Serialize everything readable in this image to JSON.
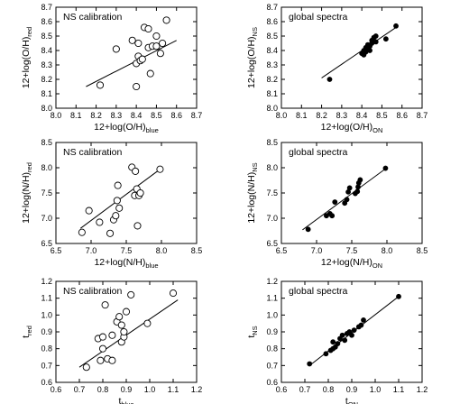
{
  "chart_data": [
    {
      "type": "scatter",
      "title": "NS calibration",
      "xlabel": {
        "main": "12+log(O/H)",
        "sub": "blue"
      },
      "ylabel": {
        "main": "12+log(O/H)",
        "sub": "red"
      },
      "xlim": [
        8.0,
        8.7
      ],
      "ylim": [
        8.0,
        8.7
      ],
      "xticks": [
        "8.0",
        "8.1",
        "8.2",
        "8.3",
        "8.4",
        "8.5",
        "8.6",
        "8.7"
      ],
      "yticks": [
        "8.0",
        "8.1",
        "8.2",
        "8.3",
        "8.4",
        "8.5",
        "8.6",
        "8.7"
      ],
      "marker": "open",
      "fit": [
        [
          8.15,
          8.15
        ],
        [
          8.6,
          8.47
        ]
      ],
      "points": [
        [
          8.22,
          8.16
        ],
        [
          8.3,
          8.41
        ],
        [
          8.38,
          8.47
        ],
        [
          8.4,
          8.15
        ],
        [
          8.4,
          8.31
        ],
        [
          8.41,
          8.36
        ],
        [
          8.41,
          8.45
        ],
        [
          8.42,
          8.33
        ],
        [
          8.43,
          8.34
        ],
        [
          8.44,
          8.56
        ],
        [
          8.46,
          8.55
        ],
        [
          8.46,
          8.42
        ],
        [
          8.47,
          8.24
        ],
        [
          8.48,
          8.43
        ],
        [
          8.5,
          8.5
        ],
        [
          8.5,
          8.43
        ],
        [
          8.52,
          8.38
        ],
        [
          8.53,
          8.45
        ],
        [
          8.55,
          8.61
        ]
      ]
    },
    {
      "type": "scatter",
      "title": "global spectra",
      "xlabel": {
        "main": "12+log(O/H)",
        "sub": "ON"
      },
      "ylabel": {
        "main": "12+log(O/H)",
        "sub": "NS"
      },
      "xlim": [
        8.0,
        8.7
      ],
      "ylim": [
        8.0,
        8.7
      ],
      "xticks": [
        "8.0",
        "8.1",
        "8.2",
        "8.3",
        "8.4",
        "8.5",
        "8.6",
        "8.7"
      ],
      "yticks": [
        "8.0",
        "8.1",
        "8.2",
        "8.3",
        "8.4",
        "8.5",
        "8.6",
        "8.7"
      ],
      "marker": "filled",
      "fit": [
        [
          8.2,
          8.21
        ],
        [
          8.57,
          8.56
        ]
      ],
      "points": [
        [
          8.24,
          8.2
        ],
        [
          8.4,
          8.38
        ],
        [
          8.41,
          8.4
        ],
        [
          8.41,
          8.37
        ],
        [
          8.42,
          8.42
        ],
        [
          8.42,
          8.39
        ],
        [
          8.43,
          8.41
        ],
        [
          8.43,
          8.44
        ],
        [
          8.44,
          8.4
        ],
        [
          8.44,
          8.43
        ],
        [
          8.45,
          8.45
        ],
        [
          8.45,
          8.47
        ],
        [
          8.46,
          8.49
        ],
        [
          8.47,
          8.46
        ],
        [
          8.47,
          8.5
        ],
        [
          8.52,
          8.48
        ],
        [
          8.57,
          8.57
        ]
      ]
    },
    {
      "type": "scatter",
      "title": "NS calibration",
      "xlabel": {
        "main": "12+log(N/H)",
        "sub": "blue"
      },
      "ylabel": {
        "main": "12+log(N/H)",
        "sub": "red"
      },
      "xlim": [
        6.5,
        8.5
      ],
      "ylim": [
        6.5,
        8.5
      ],
      "xticks": [
        "6.5",
        "7.0",
        "7.5",
        "8.0",
        "8.5"
      ],
      "yticks": [
        "6.5",
        "7.0",
        "7.5",
        "8.0",
        "8.5"
      ],
      "marker": "open",
      "fit": [
        [
          6.85,
          6.8
        ],
        [
          7.98,
          7.97
        ]
      ],
      "points": [
        [
          6.87,
          6.72
        ],
        [
          6.97,
          7.15
        ],
        [
          7.12,
          6.92
        ],
        [
          7.27,
          6.7
        ],
        [
          7.32,
          6.97
        ],
        [
          7.35,
          7.05
        ],
        [
          7.37,
          7.35
        ],
        [
          7.38,
          7.65
        ],
        [
          7.4,
          7.2
        ],
        [
          7.58,
          8.01
        ],
        [
          7.62,
          7.45
        ],
        [
          7.63,
          7.93
        ],
        [
          7.65,
          7.58
        ],
        [
          7.66,
          6.85
        ],
        [
          7.68,
          7.45
        ],
        [
          7.7,
          7.5
        ],
        [
          7.98,
          7.97
        ]
      ]
    },
    {
      "type": "scatter",
      "title": "global spectra",
      "xlabel": {
        "main": "12+log(N/H)",
        "sub": "ON"
      },
      "ylabel": {
        "main": "12+log(N/H)",
        "sub": "NS"
      },
      "xlim": [
        6.5,
        8.5
      ],
      "ylim": [
        6.5,
        8.5
      ],
      "xticks": [
        "6.5",
        "7.0",
        "7.5",
        "8.0",
        "8.5"
      ],
      "yticks": [
        "6.5",
        "7.0",
        "7.5",
        "8.0",
        "8.5"
      ],
      "marker": "filled",
      "fit": [
        [
          6.8,
          6.77
        ],
        [
          7.98,
          7.98
        ]
      ],
      "points": [
        [
          6.88,
          6.78
        ],
        [
          7.14,
          7.05
        ],
        [
          7.19,
          7.09
        ],
        [
          7.22,
          7.05
        ],
        [
          7.26,
          7.32
        ],
        [
          7.4,
          7.3
        ],
        [
          7.43,
          7.37
        ],
        [
          7.45,
          7.52
        ],
        [
          7.47,
          7.6
        ],
        [
          7.55,
          7.49
        ],
        [
          7.58,
          7.53
        ],
        [
          7.59,
          7.62
        ],
        [
          7.6,
          7.7
        ],
        [
          7.62,
          7.76
        ],
        [
          7.98,
          7.99
        ]
      ]
    },
    {
      "type": "scatter",
      "title": "NS calibration",
      "xlabel": {
        "main": "t",
        "sub": "blue"
      },
      "ylabel": {
        "main": "t",
        "sub": "red"
      },
      "xlim": [
        0.6,
        1.2
      ],
      "ylim": [
        0.6,
        1.2
      ],
      "xticks": [
        "0.6",
        "0.7",
        "0.8",
        "0.9",
        "1.0",
        "1.1",
        "1.2"
      ],
      "yticks": [
        "0.6",
        "0.7",
        "0.8",
        "0.9",
        "1.0",
        "1.1",
        "1.2"
      ],
      "marker": "open",
      "fit": [
        [
          0.7,
          0.69
        ],
        [
          1.12,
          1.09
        ]
      ],
      "points": [
        [
          0.73,
          0.69
        ],
        [
          0.78,
          0.86
        ],
        [
          0.79,
          0.73
        ],
        [
          0.8,
          0.8
        ],
        [
          0.8,
          0.87
        ],
        [
          0.81,
          1.06
        ],
        [
          0.82,
          0.74
        ],
        [
          0.84,
          0.88
        ],
        [
          0.84,
          0.73
        ],
        [
          0.86,
          0.96
        ],
        [
          0.87,
          0.99
        ],
        [
          0.88,
          0.94
        ],
        [
          0.88,
          0.84
        ],
        [
          0.89,
          0.87
        ],
        [
          0.89,
          0.9
        ],
        [
          0.9,
          1.02
        ],
        [
          0.92,
          1.12
        ],
        [
          0.99,
          0.95
        ],
        [
          1.1,
          1.13
        ]
      ]
    },
    {
      "type": "scatter",
      "title": "global spectra",
      "xlabel": {
        "main": "t",
        "sub": "ON"
      },
      "ylabel": {
        "main": "t",
        "sub": "NS"
      },
      "xlim": [
        0.6,
        1.2
      ],
      "ylim": [
        0.6,
        1.2
      ],
      "xticks": [
        "0.6",
        "0.7",
        "0.8",
        "0.9",
        "1.0",
        "1.1",
        "1.2"
      ],
      "yticks": [
        "0.6",
        "0.7",
        "0.8",
        "0.9",
        "1.0",
        "1.1",
        "1.2"
      ],
      "marker": "filled",
      "fit": [
        [
          0.72,
          0.7
        ],
        [
          1.1,
          1.11
        ]
      ],
      "points": [
        [
          0.72,
          0.71
        ],
        [
          0.79,
          0.77
        ],
        [
          0.81,
          0.79
        ],
        [
          0.82,
          0.84
        ],
        [
          0.82,
          0.8
        ],
        [
          0.83,
          0.81
        ],
        [
          0.84,
          0.83
        ],
        [
          0.85,
          0.86
        ],
        [
          0.86,
          0.88
        ],
        [
          0.87,
          0.85
        ],
        [
          0.88,
          0.89
        ],
        [
          0.89,
          0.9
        ],
        [
          0.9,
          0.88
        ],
        [
          0.91,
          0.91
        ],
        [
          0.93,
          0.93
        ],
        [
          0.94,
          0.94
        ],
        [
          0.95,
          0.97
        ],
        [
          1.1,
          1.11
        ]
      ]
    }
  ]
}
